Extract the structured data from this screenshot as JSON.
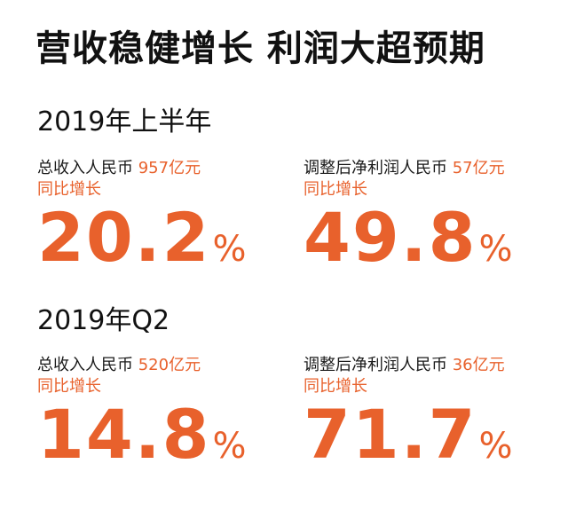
{
  "headline": "营收稳健增长 利润大超预期",
  "sections": [
    {
      "title": "2019年上半年",
      "metrics": [
        {
          "label": "总收入人民币",
          "amount": "957亿元",
          "sub": "同比增长",
          "value": "20.2",
          "unit": "%"
        },
        {
          "label": "调整后净利润人民币",
          "amount": "57亿元",
          "sub": "同比增长",
          "value": "49.8",
          "unit": "%"
        }
      ]
    },
    {
      "title": "2019年Q2",
      "metrics": [
        {
          "label": "总收入人民币",
          "amount": "520亿元",
          "sub": "同比增长",
          "value": "14.8",
          "unit": "%"
        },
        {
          "label": "调整后净利润人民币",
          "amount": "36亿元",
          "sub": "同比增长",
          "value": "71.7",
          "unit": "%"
        }
      ]
    }
  ],
  "colors": {
    "accent": "#e8612c",
    "text": "#111111",
    "background": "#ffffff"
  }
}
